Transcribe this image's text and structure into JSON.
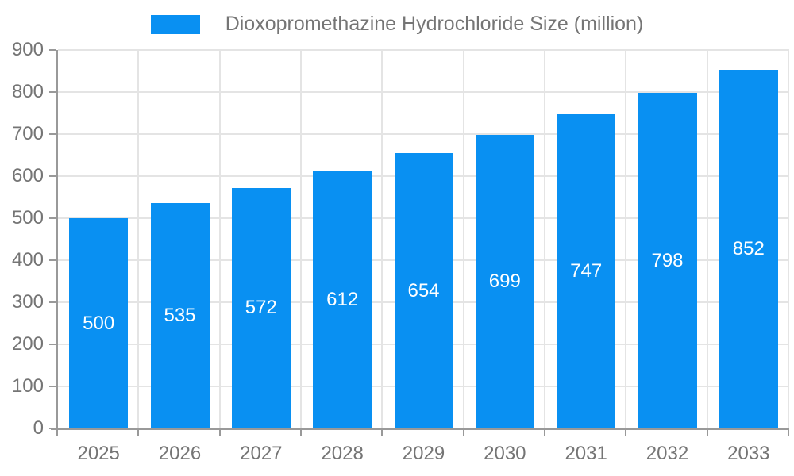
{
  "legend": {
    "position": "top"
  },
  "chart_data": {
    "type": "bar",
    "title": "Dioxopromethazine Hydrochloride Size (million)",
    "categories": [
      "2025",
      "2026",
      "2027",
      "2028",
      "2029",
      "2030",
      "2031",
      "2032",
      "2033"
    ],
    "values": [
      500,
      535,
      572,
      612,
      654,
      699,
      747,
      798,
      852
    ],
    "xlabel": "",
    "ylabel": "",
    "ylim": [
      0,
      900
    ],
    "yticks": [
      0,
      100,
      200,
      300,
      400,
      500,
      600,
      700,
      800,
      900
    ],
    "grid": true,
    "legend_position": "top",
    "bar_color": "#0990f2",
    "bar_label_color": "#ffffff",
    "axis_color": "#999999",
    "grid_color": "#e4e4e4",
    "text_color": "#757575"
  }
}
